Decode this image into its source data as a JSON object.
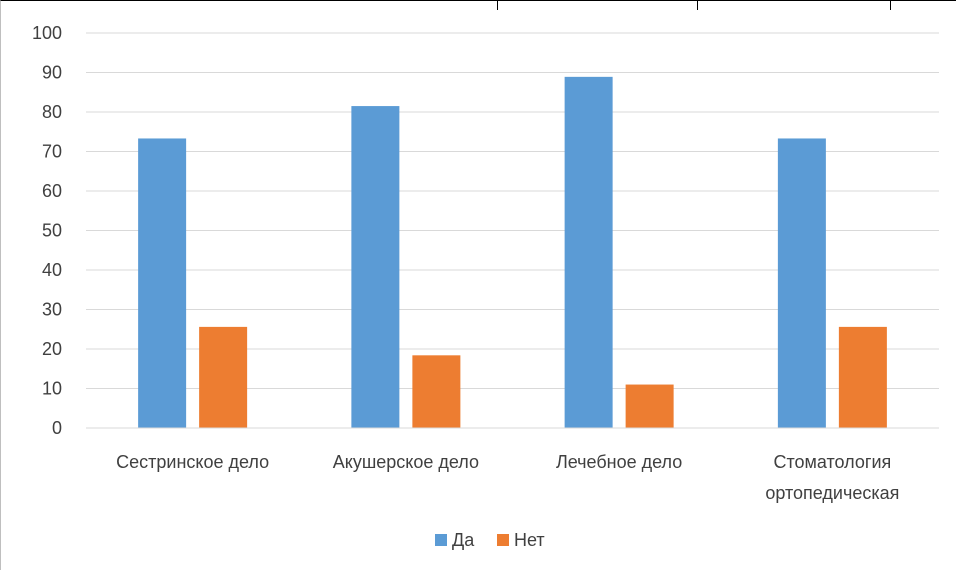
{
  "chart_data": {
    "type": "bar",
    "categories": [
      "Сестринское дело",
      "Акушерское дело",
      "Лечебное дело",
      "Стоматология ортопедическая"
    ],
    "category_lines": [
      [
        "Сестринское дело"
      ],
      [
        "Акушерское дело"
      ],
      [
        "Лечебное дело"
      ],
      [
        "Стоматология",
        "ортопедическая"
      ]
    ],
    "series": [
      {
        "name": "Да",
        "values": [
          73.3,
          81.5,
          88.9,
          73.3
        ],
        "color": "#5B9BD5"
      },
      {
        "name": "Нет",
        "values": [
          25.6,
          18.4,
          11.0,
          25.6
        ],
        "color": "#ED7D31"
      }
    ],
    "ylim": [
      0,
      100
    ],
    "yticks": [
      "0",
      "10",
      "20",
      "30",
      "40",
      "50",
      "60",
      "70",
      "80",
      "90",
      "100"
    ],
    "grid": true,
    "legend_position": "bottom",
    "title": "",
    "xlabel": "",
    "ylabel": ""
  }
}
